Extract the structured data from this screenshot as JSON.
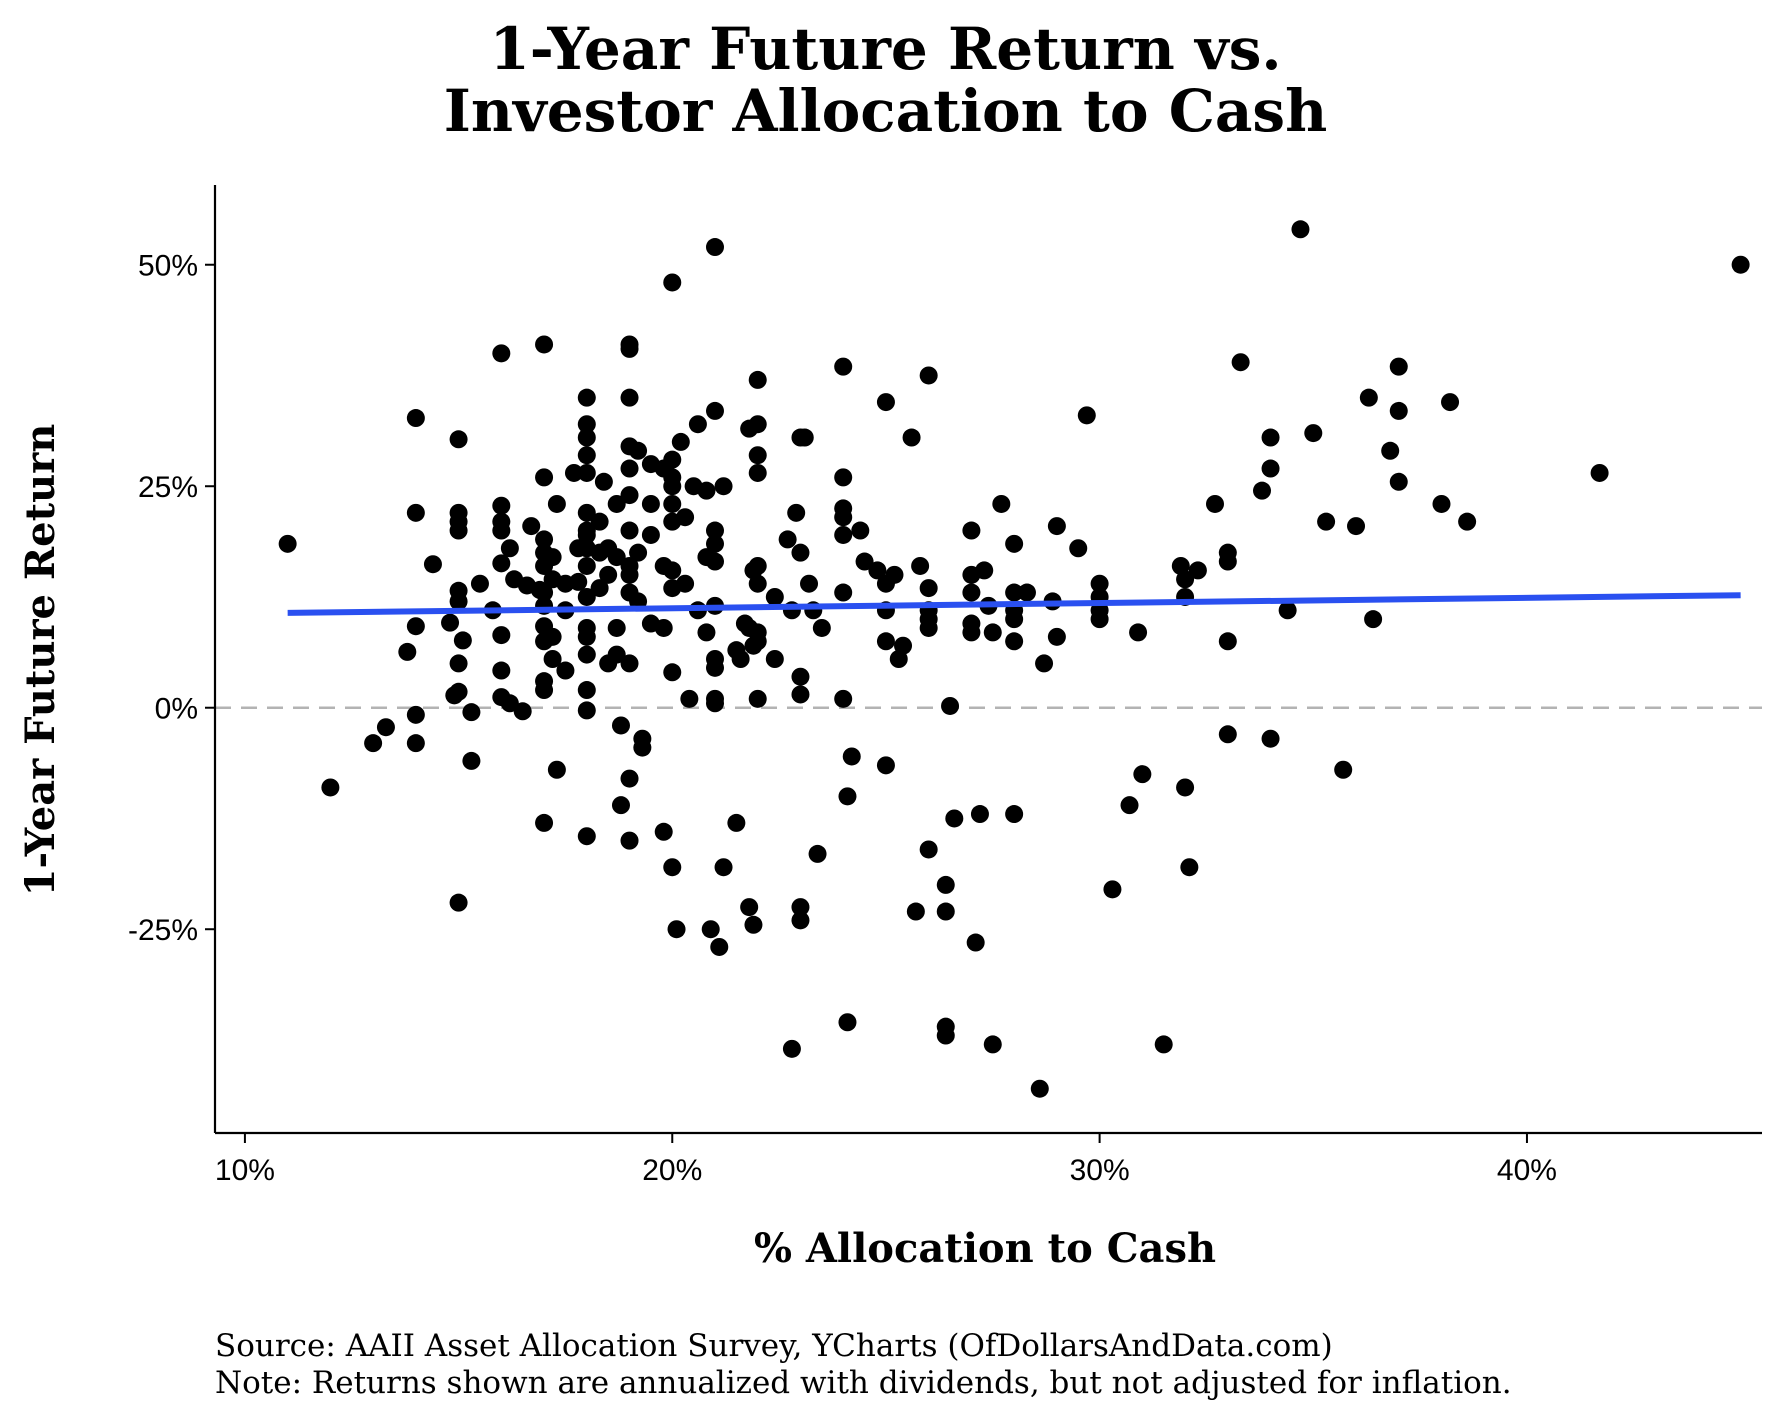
{
  "chart_data": {
    "type": "scatter",
    "title": "1-Year Future Return vs.",
    "title_line2": "Investor Allocation to Cash",
    "xlabel": "% Allocation to Cash",
    "ylabel": "1-Year Future Return",
    "xlim": [
      9.3,
      45.5
    ],
    "ylim": [
      -48,
      59
    ],
    "xticks": [
      10,
      20,
      30,
      40
    ],
    "xtick_labels": [
      "10%",
      "20%",
      "30%",
      "40%"
    ],
    "yticks": [
      -25,
      0,
      25,
      50
    ],
    "ytick_labels": [
      "-25%",
      "0%",
      "25%",
      "50%"
    ],
    "grid": false,
    "reference_line": {
      "y": 0,
      "style": "dashed",
      "color": "#b3b3b3"
    },
    "trend_line": {
      "x": [
        11.0,
        45.0
      ],
      "y": [
        10.7,
        12.7
      ],
      "color": "#2a50f0"
    },
    "point_color": "#000000",
    "points": [
      [
        11,
        18.5
      ],
      [
        12,
        -9
      ],
      [
        13,
        -4
      ],
      [
        13.3,
        -2.2
      ],
      [
        13.8,
        6.3
      ],
      [
        14,
        32.7
      ],
      [
        14,
        22
      ],
      [
        14,
        9.2
      ],
      [
        14,
        -0.8
      ],
      [
        14,
        -4
      ],
      [
        14.4,
        16.2
      ],
      [
        14.8,
        9.6
      ],
      [
        14.9,
        1.4
      ],
      [
        15,
        30.3
      ],
      [
        15,
        22
      ],
      [
        15,
        21
      ],
      [
        15,
        20
      ],
      [
        15,
        13.2
      ],
      [
        15,
        12
      ],
      [
        15,
        5
      ],
      [
        15,
        1.8
      ],
      [
        15,
        -22
      ],
      [
        15.1,
        7.6
      ],
      [
        15.3,
        -0.5
      ],
      [
        15.3,
        -6
      ],
      [
        15.5,
        14
      ],
      [
        15.8,
        11
      ],
      [
        16,
        40
      ],
      [
        16,
        22.8
      ],
      [
        16,
        21
      ],
      [
        16,
        20
      ],
      [
        16,
        16.3
      ],
      [
        16,
        8.2
      ],
      [
        16,
        4.2
      ],
      [
        16,
        1.2
      ],
      [
        16.2,
        0.5
      ],
      [
        16.2,
        18
      ],
      [
        16.3,
        14.5
      ],
      [
        16.5,
        -0.4
      ],
      [
        16.6,
        13.8
      ],
      [
        16.7,
        20.5
      ],
      [
        16.9,
        13.3
      ],
      [
        17,
        41
      ],
      [
        17,
        26
      ],
      [
        17,
        19
      ],
      [
        17,
        17.5
      ],
      [
        17,
        16
      ],
      [
        17,
        13
      ],
      [
        17,
        11.5
      ],
      [
        17,
        9.2
      ],
      [
        17,
        7.5
      ],
      [
        17,
        3
      ],
      [
        17,
        2
      ],
      [
        17,
        -13
      ],
      [
        17.2,
        17
      ],
      [
        17.2,
        14.5
      ],
      [
        17.2,
        8
      ],
      [
        17.2,
        5.5
      ],
      [
        17.3,
        23
      ],
      [
        17.3,
        -7
      ],
      [
        17.5,
        14
      ],
      [
        17.5,
        11
      ],
      [
        17.5,
        4.2
      ],
      [
        17.7,
        26.5
      ],
      [
        17.8,
        18
      ],
      [
        17.8,
        14.2
      ],
      [
        18,
        35
      ],
      [
        18,
        32
      ],
      [
        18,
        30.5
      ],
      [
        18,
        28.5
      ],
      [
        18,
        26.5
      ],
      [
        18,
        22
      ],
      [
        18,
        20
      ],
      [
        18,
        19.5
      ],
      [
        18,
        18
      ],
      [
        18,
        16
      ],
      [
        18,
        12.5
      ],
      [
        18,
        9
      ],
      [
        18,
        8
      ],
      [
        18,
        6
      ],
      [
        18,
        2
      ],
      [
        18,
        -0.3
      ],
      [
        18,
        -14.5
      ],
      [
        18.3,
        21
      ],
      [
        18.3,
        17.5
      ],
      [
        18.3,
        13.5
      ],
      [
        18.4,
        25.5
      ],
      [
        18.5,
        18
      ],
      [
        18.5,
        15
      ],
      [
        18.5,
        5
      ],
      [
        18.7,
        23
      ],
      [
        18.7,
        17
      ],
      [
        18.7,
        9
      ],
      [
        18.7,
        6
      ],
      [
        18.8,
        -2
      ],
      [
        18.8,
        -11
      ],
      [
        19,
        41
      ],
      [
        19,
        40.5
      ],
      [
        19,
        35
      ],
      [
        19,
        29.5
      ],
      [
        19,
        27
      ],
      [
        19,
        24
      ],
      [
        19,
        20
      ],
      [
        19,
        16
      ],
      [
        19,
        15
      ],
      [
        19,
        13
      ],
      [
        19,
        5
      ],
      [
        19,
        -8
      ],
      [
        19,
        -15
      ],
      [
        19.2,
        29
      ],
      [
        19.2,
        17.5
      ],
      [
        19.2,
        12
      ],
      [
        19.3,
        -3.5
      ],
      [
        19.3,
        -4.5
      ],
      [
        19.5,
        27.5
      ],
      [
        19.5,
        23
      ],
      [
        19.5,
        19.5
      ],
      [
        19.5,
        9.5
      ],
      [
        19.8,
        27
      ],
      [
        19.8,
        16
      ],
      [
        19.8,
        9
      ],
      [
        19.8,
        -14
      ],
      [
        20,
        48
      ],
      [
        20,
        28
      ],
      [
        20,
        26
      ],
      [
        20,
        25
      ],
      [
        20,
        23
      ],
      [
        20,
        21
      ],
      [
        20,
        15.5
      ],
      [
        20,
        13.5
      ],
      [
        20,
        4
      ],
      [
        20,
        -18
      ],
      [
        20.1,
        -25
      ],
      [
        20.2,
        30
      ],
      [
        20.3,
        21.5
      ],
      [
        20.3,
        14
      ],
      [
        20.4,
        1
      ],
      [
        20.5,
        25
      ],
      [
        20.6,
        32
      ],
      [
        20.6,
        11
      ],
      [
        20.8,
        24.5
      ],
      [
        20.8,
        17
      ],
      [
        20.8,
        8.5
      ],
      [
        20.9,
        -25
      ],
      [
        21,
        52
      ],
      [
        21,
        33.5
      ],
      [
        21,
        20
      ],
      [
        21,
        18.5
      ],
      [
        21,
        16.5
      ],
      [
        21,
        11.5
      ],
      [
        21,
        5.5
      ],
      [
        21,
        4.5
      ],
      [
        21,
        1
      ],
      [
        21,
        0.5
      ],
      [
        21.1,
        -27
      ],
      [
        21.2,
        -18
      ],
      [
        21.2,
        25
      ],
      [
        21.5,
        -13
      ],
      [
        21.5,
        6.5
      ],
      [
        21.6,
        5.5
      ],
      [
        21.7,
        9.5
      ],
      [
        21.8,
        31.5
      ],
      [
        21.8,
        9
      ],
      [
        21.8,
        -22.5
      ],
      [
        21.9,
        15.5
      ],
      [
        21.9,
        7
      ],
      [
        21.9,
        -24.5
      ],
      [
        22,
        37
      ],
      [
        22,
        32
      ],
      [
        22,
        28.5
      ],
      [
        22,
        26.5
      ],
      [
        22,
        16
      ],
      [
        22,
        14
      ],
      [
        22,
        8.5
      ],
      [
        22,
        7.5
      ],
      [
        22,
        1
      ],
      [
        22.4,
        12.5
      ],
      [
        22.4,
        5.5
      ],
      [
        22.7,
        19
      ],
      [
        22.8,
        11
      ],
      [
        22.8,
        -38.5
      ],
      [
        22.9,
        22
      ],
      [
        23,
        30.5
      ],
      [
        23,
        17.5
      ],
      [
        23,
        3.5
      ],
      [
        23,
        1.5
      ],
      [
        23,
        -22.5
      ],
      [
        23,
        -24
      ],
      [
        23.1,
        30.5
      ],
      [
        23.2,
        14
      ],
      [
        23.3,
        11
      ],
      [
        23.4,
        -16.5
      ],
      [
        23.5,
        9
      ],
      [
        24,
        38.5
      ],
      [
        24,
        26
      ],
      [
        24,
        22.5
      ],
      [
        24,
        21.5
      ],
      [
        24,
        19.5
      ],
      [
        24,
        13
      ],
      [
        24,
        1
      ],
      [
        24.1,
        -10
      ],
      [
        24.1,
        -35.5
      ],
      [
        24.2,
        -5.5
      ],
      [
        24.4,
        20
      ],
      [
        24.5,
        16.5
      ],
      [
        24.8,
        15.5
      ],
      [
        25,
        34.5
      ],
      [
        25,
        14
      ],
      [
        25,
        11
      ],
      [
        25,
        7.5
      ],
      [
        25,
        -6.5
      ],
      [
        25.2,
        15
      ],
      [
        25.3,
        5.5
      ],
      [
        25.4,
        7
      ],
      [
        25.6,
        30.5
      ],
      [
        25.7,
        -23
      ],
      [
        25.8,
        16
      ],
      [
        26,
        37.5
      ],
      [
        26,
        13.5
      ],
      [
        26,
        11
      ],
      [
        26,
        10
      ],
      [
        26,
        9
      ],
      [
        26,
        -16
      ],
      [
        26.4,
        -20
      ],
      [
        26.4,
        -23
      ],
      [
        26.4,
        -36
      ],
      [
        26.4,
        -37
      ],
      [
        26.5,
        0.2
      ],
      [
        26.6,
        -12.5
      ],
      [
        27,
        20
      ],
      [
        27,
        15
      ],
      [
        27,
        13
      ],
      [
        27,
        9.5
      ],
      [
        27,
        8.5
      ],
      [
        27.1,
        -26.5
      ],
      [
        27.2,
        -12
      ],
      [
        27.3,
        15.5
      ],
      [
        27.4,
        11.5
      ],
      [
        27.5,
        -38
      ],
      [
        27.5,
        8.5
      ],
      [
        27.7,
        23
      ],
      [
        28,
        18.5
      ],
      [
        28,
        13
      ],
      [
        28,
        11
      ],
      [
        28,
        10
      ],
      [
        28,
        7.5
      ],
      [
        28,
        -12
      ],
      [
        28.3,
        13
      ],
      [
        28.6,
        -43
      ],
      [
        28.7,
        5
      ],
      [
        28.9,
        12
      ],
      [
        29,
        20.5
      ],
      [
        29,
        8
      ],
      [
        29.5,
        18
      ],
      [
        29.7,
        33
      ],
      [
        30,
        14
      ],
      [
        30,
        12.5
      ],
      [
        30,
        11
      ],
      [
        30,
        10
      ],
      [
        30.3,
        -20.5
      ],
      [
        30.7,
        -11
      ],
      [
        30.9,
        8.5
      ],
      [
        31,
        -7.5
      ],
      [
        31.5,
        -38
      ],
      [
        31.9,
        16
      ],
      [
        32,
        14.5
      ],
      [
        32,
        12.5
      ],
      [
        32,
        -9
      ],
      [
        32.1,
        -18
      ],
      [
        32.3,
        15.5
      ],
      [
        32.7,
        23
      ],
      [
        33,
        17.5
      ],
      [
        33,
        16.5
      ],
      [
        33,
        7.5
      ],
      [
        33,
        -3
      ],
      [
        33.3,
        39
      ],
      [
        33.8,
        24.5
      ],
      [
        34,
        30.5
      ],
      [
        34,
        27
      ],
      [
        34,
        -3.5
      ],
      [
        34.4,
        11
      ],
      [
        34.7,
        54
      ],
      [
        35,
        31
      ],
      [
        35.3,
        21
      ],
      [
        35.7,
        -7
      ],
      [
        36,
        20.5
      ],
      [
        36.3,
        35
      ],
      [
        36.4,
        10
      ],
      [
        36.8,
        29
      ],
      [
        37,
        38.5
      ],
      [
        37,
        33.5
      ],
      [
        37,
        25.5
      ],
      [
        38,
        23
      ],
      [
        38.2,
        34.5
      ],
      [
        38.6,
        21
      ],
      [
        41.7,
        26.5
      ],
      [
        45,
        50
      ]
    ]
  },
  "footer": {
    "source": "Source: AAII Asset Allocation Survey, YCharts (OfDollarsAndData.com)",
    "note": "Note: Returns shown are annualized with dividends, but not adjusted for inflation."
  }
}
